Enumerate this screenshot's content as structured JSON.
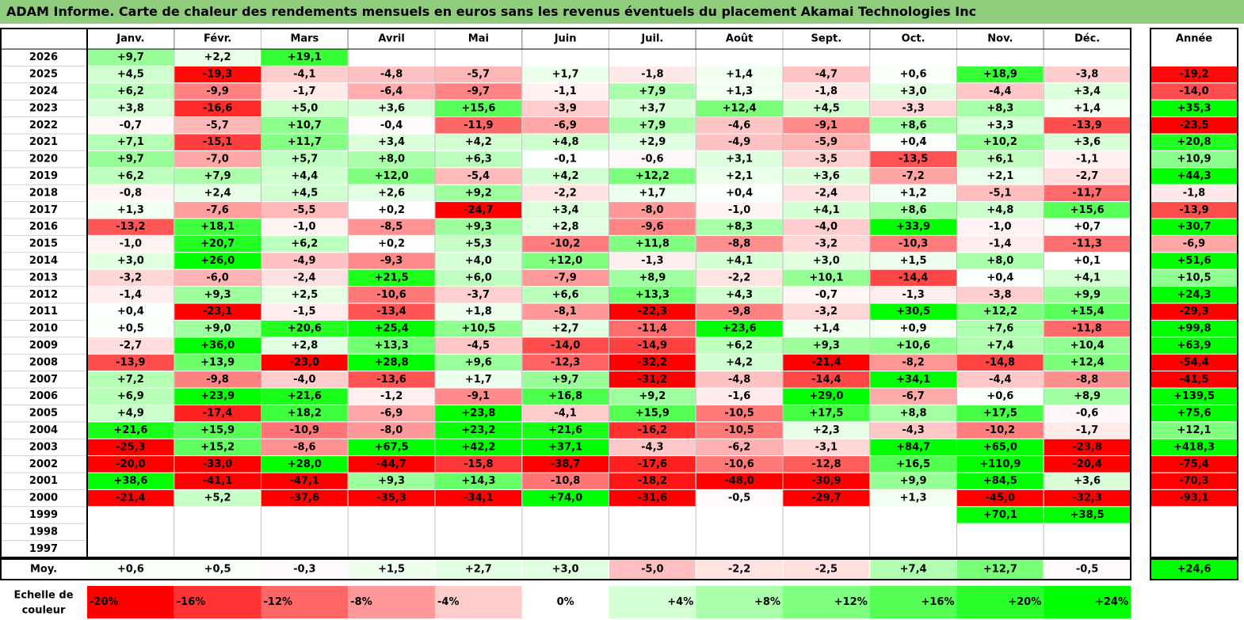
{
  "title": "ADAM Informe. Carte de chaleur des rendements mensuels en euros sans les revenus éventuels du placement Akamai Technologies Inc",
  "chart_data": {
    "type": "heatmap",
    "months": [
      "Janv.",
      "Févr.",
      "Mars",
      "Avril",
      "Mai",
      "Juin",
      "Juil.",
      "Août",
      "Sept.",
      "Oct.",
      "Nov.",
      "Déc."
    ],
    "year_header": "Année",
    "avg_label": "Moy.",
    "scale_label_line1": "Echelle de",
    "scale_label_line2": "couleur",
    "rows": [
      {
        "year": "2026",
        "values": [
          "+9,7",
          "+2,2",
          "+19,1",
          "",
          "",
          "",
          "",
          "",
          "",
          "",
          "",
          ""
        ],
        "total": ""
      },
      {
        "year": "2025",
        "values": [
          "+4,5",
          "-19,3",
          "-4,1",
          "-4,8",
          "-5,7",
          "+1,7",
          "-1,8",
          "+1,4",
          "-4,7",
          "+0,6",
          "+18,9",
          "-3,8"
        ],
        "total": "-19,2"
      },
      {
        "year": "2024",
        "values": [
          "+6,2",
          "-9,9",
          "-1,7",
          "-6,4",
          "-9,7",
          "-1,1",
          "+7,9",
          "+1,3",
          "-1,8",
          "+3,0",
          "-4,4",
          "+3,4"
        ],
        "total": "-14,0"
      },
      {
        "year": "2023",
        "values": [
          "+3,8",
          "-16,6",
          "+5,0",
          "+3,6",
          "+15,6",
          "-3,9",
          "+3,7",
          "+12,4",
          "+4,5",
          "-3,3",
          "+8,3",
          "+1,4"
        ],
        "total": "+35,3"
      },
      {
        "year": "2022",
        "values": [
          "-0,7",
          "-5,7",
          "+10,7",
          "-0,4",
          "-11,9",
          "-6,9",
          "+7,9",
          "-4,6",
          "-9,1",
          "+8,6",
          "+3,3",
          "-13,9"
        ],
        "total": "-23,5"
      },
      {
        "year": "2021",
        "values": [
          "+7,1",
          "-15,1",
          "+11,7",
          "+3,4",
          "+4,2",
          "+4,8",
          "+2,9",
          "-4,9",
          "-5,9",
          "+0,4",
          "+10,2",
          "+3,6"
        ],
        "total": "+20,8"
      },
      {
        "year": "2020",
        "values": [
          "+9,7",
          "-7,0",
          "+5,7",
          "+8,0",
          "+6,3",
          "-0,1",
          "-0,6",
          "+3,1",
          "-3,5",
          "-13,5",
          "+6,1",
          "-1,1"
        ],
        "total": "+10,9"
      },
      {
        "year": "2019",
        "values": [
          "+6,2",
          "+7,9",
          "+4,4",
          "+12,0",
          "-5,4",
          "+4,2",
          "+12,2",
          "+2,1",
          "+3,6",
          "-7,2",
          "+2,1",
          "-2,7"
        ],
        "total": "+44,3"
      },
      {
        "year": "2018",
        "values": [
          "-0,8",
          "+2,4",
          "+4,5",
          "+2,6",
          "+9,2",
          "-2,2",
          "+1,7",
          "+0,4",
          "-2,4",
          "+1,2",
          "-5,1",
          "-11,7"
        ],
        "total": "-1,8"
      },
      {
        "year": "2017",
        "values": [
          "+1,3",
          "-7,6",
          "-5,5",
          "+0,2",
          "-24,7",
          "+3,4",
          "-8,0",
          "-1,0",
          "+4,1",
          "+8,6",
          "+4,8",
          "+15,6"
        ],
        "total": "-13,9"
      },
      {
        "year": "2016",
        "values": [
          "-13,2",
          "+18,1",
          "-1,0",
          "-8,5",
          "+9,3",
          "+2,8",
          "-9,6",
          "+8,3",
          "-4,0",
          "+33,9",
          "-1,0",
          "+0,7"
        ],
        "total": "+30,7"
      },
      {
        "year": "2015",
        "values": [
          "-1,0",
          "+20,7",
          "+6,2",
          "+0,2",
          "+5,3",
          "-10,2",
          "+11,8",
          "-8,8",
          "-3,2",
          "-10,3",
          "-1,4",
          "-11,3"
        ],
        "total": "-6,9"
      },
      {
        "year": "2014",
        "values": [
          "+3,0",
          "+26,0",
          "-4,9",
          "-9,3",
          "+4,0",
          "+12,0",
          "-1,3",
          "+4,1",
          "+3,0",
          "+1,5",
          "+8,0",
          "+0,1"
        ],
        "total": "+51,6"
      },
      {
        "year": "2013",
        "values": [
          "-3,2",
          "-6,0",
          "-2,4",
          "+21,5",
          "+6,0",
          "-7,9",
          "+8,9",
          "-2,2",
          "+10,1",
          "-14,4",
          "+0,4",
          "+4,1"
        ],
        "total": "+10,5"
      },
      {
        "year": "2012",
        "values": [
          "-1,4",
          "+9,3",
          "+2,5",
          "-10,6",
          "-3,7",
          "+6,6",
          "+13,3",
          "+4,3",
          "-0,7",
          "-1,3",
          "-3,8",
          "+9,9"
        ],
        "total": "+24,3"
      },
      {
        "year": "2011",
        "values": [
          "+0,4",
          "-23,1",
          "-1,5",
          "-13,4",
          "+1,8",
          "-8,1",
          "-22,3",
          "-9,8",
          "-3,2",
          "+30,5",
          "+12,2",
          "+15,4"
        ],
        "total": "-29,3"
      },
      {
        "year": "2010",
        "values": [
          "+0,5",
          "+9,0",
          "+20,6",
          "+25,4",
          "+10,5",
          "+2,7",
          "-11,4",
          "+23,6",
          "+1,4",
          "+0,9",
          "+7,6",
          "-11,8"
        ],
        "total": "+99,8"
      },
      {
        "year": "2009",
        "values": [
          "-2,7",
          "+36,0",
          "+2,8",
          "+13,3",
          "-4,5",
          "-14,0",
          "-14,9",
          "+6,2",
          "+9,3",
          "+10,6",
          "+7,4",
          "+10,4"
        ],
        "total": "+63,9"
      },
      {
        "year": "2008",
        "values": [
          "-13,9",
          "+13,9",
          "-23,0",
          "+28,8",
          "+9,6",
          "-12,3",
          "-32,2",
          "+4,2",
          "-21,4",
          "-8,2",
          "-14,8",
          "+12,4"
        ],
        "total": "-54,4"
      },
      {
        "year": "2007",
        "values": [
          "+7,2",
          "-9,8",
          "-4,0",
          "-13,6",
          "+1,7",
          "+9,7",
          "-31,2",
          "-4,8",
          "-14,4",
          "+34,1",
          "-4,4",
          "-8,8"
        ],
        "total": "-41,5"
      },
      {
        "year": "2006",
        "values": [
          "+6,9",
          "+23,9",
          "+21,6",
          "-1,2",
          "-9,1",
          "+16,8",
          "+9,2",
          "-1,6",
          "+29,0",
          "-6,7",
          "+0,6",
          "+8,9"
        ],
        "total": "+139,5"
      },
      {
        "year": "2005",
        "values": [
          "+4,9",
          "-17,4",
          "+18,2",
          "-6,9",
          "+23,8",
          "-4,1",
          "+15,9",
          "-10,5",
          "+17,5",
          "+8,8",
          "+17,5",
          "-0,6"
        ],
        "total": "+75,6"
      },
      {
        "year": "2004",
        "values": [
          "+21,6",
          "+15,9",
          "-10,9",
          "-8,0",
          "+23,2",
          "+21,6",
          "-16,2",
          "-10,5",
          "+2,3",
          "-4,3",
          "-10,2",
          "-1,7"
        ],
        "total": "+12,1"
      },
      {
        "year": "2003",
        "values": [
          "-25,3",
          "+15,2",
          "-8,6",
          "+67,5",
          "+42,2",
          "+37,1",
          "-4,3",
          "-6,2",
          "-3,1",
          "+84,7",
          "+65,0",
          "-23,8"
        ],
        "total": "+418,3"
      },
      {
        "year": "2002",
        "values": [
          "-20,0",
          "-33,0",
          "+28,0",
          "-44,7",
          "-15,8",
          "-38,7",
          "-17,6",
          "-10,6",
          "-12,8",
          "+16,5",
          "+110,9",
          "-20,4"
        ],
        "total": "-75,4"
      },
      {
        "year": "2001",
        "values": [
          "+38,6",
          "-41,1",
          "-47,1",
          "+9,3",
          "+14,3",
          "-10,8",
          "-18,2",
          "-48,0",
          "-30,9",
          "+9,9",
          "+84,5",
          "+3,6"
        ],
        "total": "-70,3"
      },
      {
        "year": "2000",
        "values": [
          "-21,4",
          "+5,2",
          "-37,6",
          "-35,3",
          "-34,1",
          "+74,0",
          "-31,6",
          "-0,5",
          "-29,7",
          "+1,3",
          "-45,0",
          "-32,3"
        ],
        "total": "-93,1"
      },
      {
        "year": "1999",
        "values": [
          "",
          "",
          "",
          "",
          "",
          "",
          "",
          "",
          "",
          "",
          "+70,1",
          "+38,5"
        ],
        "total": ""
      },
      {
        "year": "1998",
        "values": [
          "",
          "",
          "",
          "",
          "",
          "",
          "",
          "",
          "",
          "",
          "",
          ""
        ],
        "total": ""
      },
      {
        "year": "1997",
        "values": [
          "",
          "",
          "",
          "",
          "",
          "",
          "",
          "",
          "",
          "",
          "",
          ""
        ],
        "total": ""
      }
    ],
    "averages": [
      "+0,6",
      "+0,5",
      "-0,3",
      "+1,5",
      "+2,7",
      "+3,0",
      "-5,0",
      "-2,2",
      "-2,5",
      "+7,4",
      "+12,7",
      "-0,5"
    ],
    "average_total": "+24,6",
    "scale": [
      {
        "label": "-20%",
        "value": -20
      },
      {
        "label": "-16%",
        "value": -16
      },
      {
        "label": "-12%",
        "value": -12
      },
      {
        "label": "-8%",
        "value": -8
      },
      {
        "label": "-4%",
        "value": -4
      },
      {
        "label": "0%",
        "value": 0
      },
      {
        "label": "+4%",
        "value": 4
      },
      {
        "label": "+8%",
        "value": 8
      },
      {
        "label": "+12%",
        "value": 12
      },
      {
        "label": "+16%",
        "value": 16
      },
      {
        "label": "+20%",
        "value": 20
      },
      {
        "label": "+24%",
        "value": 24
      }
    ],
    "colors": {
      "negative": "#ff0000",
      "neutral": "#ffffff",
      "positive": "#00ff00",
      "title_bg": "#8fcd7c"
    }
  }
}
